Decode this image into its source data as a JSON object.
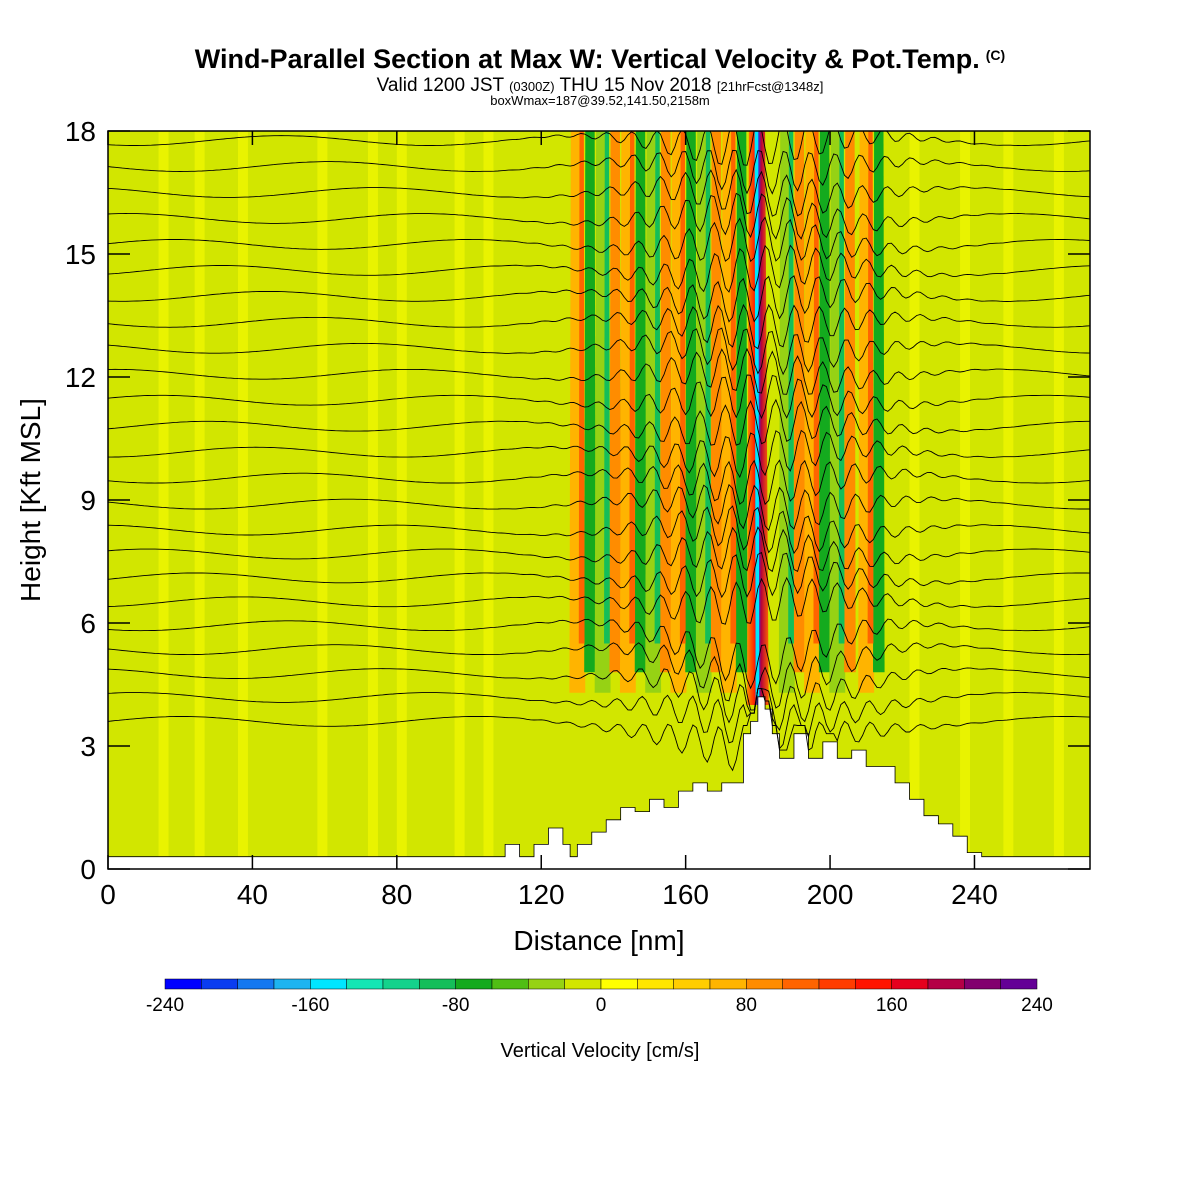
{
  "title": "Wind-Parallel Section at Max W: Vertical Velocity & Pot.Temp.",
  "copyright_tag": "(C)",
  "subtitle": {
    "prefix": "Valid 1200 JST",
    "utc": "(0300Z)",
    "date": "THU 15 Nov 2018",
    "forecast": "[21hrFcst@1348z]"
  },
  "box_info": "boxWmax=187@39.52,141.50,2158m",
  "chart_data": {
    "type": "heatmap",
    "xlabel": "Distance [nm]",
    "ylabel": "Height [Kft MSL]",
    "xlim": [
      0,
      272
    ],
    "ylim": [
      0,
      18
    ],
    "x_ticks": [
      "0",
      "40",
      "80",
      "120",
      "160",
      "200",
      "240"
    ],
    "y_ticks": [
      "0",
      "3",
      "6",
      "9",
      "12",
      "15",
      "18"
    ],
    "colorbar": {
      "label": "Vertical Velocity [cm/s]",
      "tick_labels": [
        "-240",
        "-160",
        "-80",
        "0",
        "80",
        "160",
        "240"
      ],
      "min": -240,
      "max": 240,
      "colors": [
        "#0000ff",
        "#0a3cf0",
        "#1478f0",
        "#1eb4f0",
        "#00e6ff",
        "#14e6b4",
        "#14d28c",
        "#14be5a",
        "#14aa1e",
        "#50be14",
        "#96d214",
        "#d2e600",
        "#ffff00",
        "#ffe600",
        "#ffcd00",
        "#ffb400",
        "#ff8c00",
        "#ff6400",
        "#ff3c00",
        "#ff1400",
        "#e6001e",
        "#b40046",
        "#82006e",
        "#640096"
      ]
    },
    "terrain_profile": [
      [
        0,
        0.3
      ],
      [
        108,
        0.3
      ],
      [
        110,
        0.6
      ],
      [
        114,
        0.3
      ],
      [
        118,
        0.6
      ],
      [
        122,
        1
      ],
      [
        126,
        0.6
      ],
      [
        128,
        0.3
      ],
      [
        130,
        0.6
      ],
      [
        134,
        0.9
      ],
      [
        138,
        1.2
      ],
      [
        142,
        1.5
      ],
      [
        146,
        1.4
      ],
      [
        150,
        1.7
      ],
      [
        154,
        1.5
      ],
      [
        158,
        1.9
      ],
      [
        162,
        2.1
      ],
      [
        166,
        1.9
      ],
      [
        170,
        2.1
      ],
      [
        174,
        2.1
      ],
      [
        176,
        3.3
      ],
      [
        178,
        3.6
      ],
      [
        180,
        4.2
      ],
      [
        182,
        3.9
      ],
      [
        184,
        3.3
      ],
      [
        186,
        2.7
      ],
      [
        190,
        3.3
      ],
      [
        194,
        2.7
      ],
      [
        198,
        3.1
      ],
      [
        202,
        2.7
      ],
      [
        206,
        2.9
      ],
      [
        210,
        2.5
      ],
      [
        214,
        2.5
      ],
      [
        218,
        2.1
      ],
      [
        222,
        1.7
      ],
      [
        226,
        1.3
      ],
      [
        230,
        1.1
      ],
      [
        234,
        0.8
      ],
      [
        238,
        0.4
      ],
      [
        242,
        0.3
      ],
      [
        272,
        0.3
      ]
    ],
    "max_w_location_nm": 180,
    "theta_contour_count": 24
  }
}
